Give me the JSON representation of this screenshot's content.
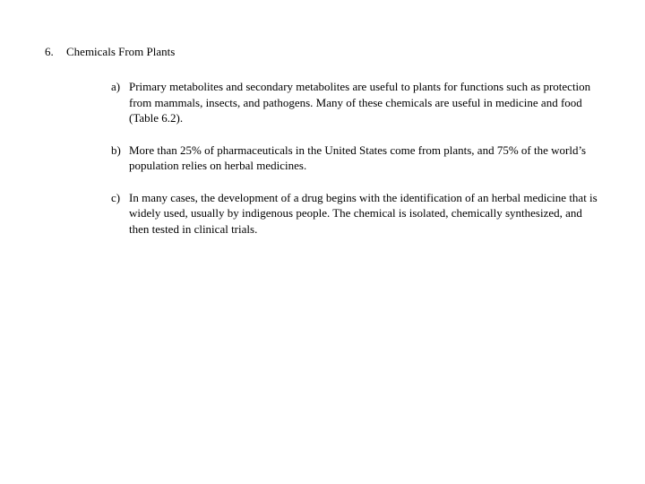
{
  "background_color": "#ffffff",
  "text_color": "#000000",
  "font_family": "Book Antiqua, Palatino, serif",
  "base_font_size_pt": 10,
  "section": {
    "number": "6.",
    "title": "Chemicals From Plants",
    "items": [
      {
        "marker": "a)",
        "text": "Primary metabolites and secondary metabolites are useful to plants for functions such as protection from mammals, insects, and pathogens. Many of these chemicals are useful in medicine and food (Table 6.2)."
      },
      {
        "marker": "b)",
        "text": "More than 25% of pharmaceuticals in the United States come from plants, and 75% of the world’s population relies on herbal medicines."
      },
      {
        "marker": "c)",
        "text": "In many cases, the development of a drug begins with the identification of an herbal medicine that is widely used, usually by indigenous people. The chemical is isolated, chemically synthesized, and then tested in clinical trials."
      }
    ]
  }
}
